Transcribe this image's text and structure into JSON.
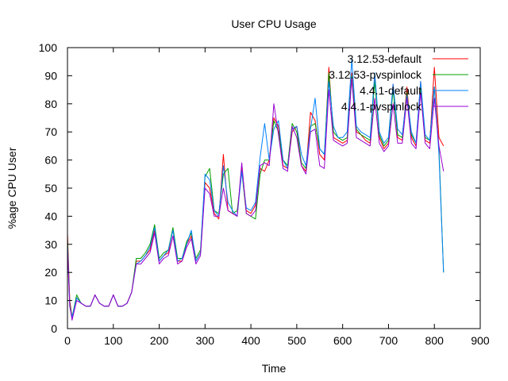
{
  "chart_data": {
    "type": "line",
    "title": "User CPU Usage",
    "xlabel": "Time",
    "ylabel": "%age CPU User",
    "xlim": [
      0,
      900
    ],
    "ylim": [
      0,
      100
    ],
    "xticks": [
      0,
      100,
      200,
      300,
      400,
      500,
      600,
      700,
      800,
      900
    ],
    "yticks": [
      0,
      10,
      20,
      30,
      40,
      50,
      60,
      70,
      80,
      90,
      100
    ],
    "grid": false,
    "legend_position": "top-right",
    "series": [
      {
        "name": "3.12.53-default",
        "color": "#ff0000",
        "x": [
          0,
          5,
          10,
          20,
          30,
          40,
          50,
          60,
          70,
          80,
          90,
          100,
          110,
          120,
          130,
          140,
          150,
          160,
          170,
          180,
          190,
          200,
          210,
          220,
          230,
          240,
          250,
          260,
          270,
          280,
          290,
          300,
          310,
          320,
          330,
          340,
          350,
          360,
          370,
          380,
          390,
          400,
          410,
          420,
          430,
          440,
          450,
          460,
          470,
          480,
          490,
          500,
          510,
          520,
          530,
          540,
          550,
          560,
          570,
          580,
          590,
          600,
          610,
          620,
          630,
          640,
          650,
          660,
          670,
          680,
          690,
          700,
          710,
          720,
          730,
          740,
          750,
          760,
          770,
          780,
          790,
          800,
          810,
          820
        ],
        "y": [
          34,
          10,
          4,
          11,
          9,
          8,
          8,
          12,
          9,
          8,
          8,
          12,
          8,
          8,
          9,
          13,
          24,
          24,
          26,
          28,
          35,
          24,
          26,
          27,
          33,
          24,
          24,
          30,
          33,
          24,
          27,
          52,
          50,
          41,
          39,
          62,
          42,
          41,
          40,
          58,
          42,
          41,
          44,
          57,
          56,
          60,
          75,
          72,
          58,
          57,
          70,
          72,
          58,
          56,
          77,
          74,
          62,
          60,
          93,
          68,
          67,
          66,
          67,
          91,
          70,
          69,
          67,
          66,
          90,
          68,
          64,
          66,
          87,
          68,
          67,
          86,
          68,
          65,
          88,
          67,
          66,
          93,
          68,
          65
        ]
      },
      {
        "name": "3.12.53-pvspinlock",
        "color": "#00a000",
        "x": [
          0,
          5,
          10,
          20,
          30,
          40,
          50,
          60,
          70,
          80,
          90,
          100,
          110,
          120,
          130,
          140,
          150,
          160,
          170,
          180,
          190,
          200,
          210,
          220,
          230,
          240,
          250,
          260,
          270,
          280,
          290,
          300,
          310,
          320,
          330,
          340,
          350,
          360,
          370,
          380,
          390,
          400,
          410,
          420,
          430,
          440,
          450,
          460,
          470,
          480,
          490,
          500,
          510,
          520,
          530,
          540,
          550,
          560,
          570,
          580,
          590,
          600,
          610,
          620,
          630,
          640,
          650,
          660,
          670,
          680,
          690,
          700,
          710,
          720,
          730,
          740,
          750,
          760,
          770,
          780,
          790,
          800,
          810,
          820
        ],
        "y": [
          32,
          9,
          4,
          12,
          9,
          8,
          8,
          12,
          9,
          8,
          8,
          12,
          8,
          8,
          9,
          13,
          25,
          25,
          27,
          30,
          37,
          25,
          27,
          28,
          36,
          25,
          25,
          31,
          34,
          25,
          28,
          54,
          57,
          42,
          41,
          55,
          57,
          41,
          42,
          56,
          41,
          40,
          39,
          55,
          60,
          60,
          74,
          70,
          60,
          58,
          73,
          70,
          59,
          57,
          72,
          73,
          64,
          62,
          91,
          70,
          68,
          67,
          68,
          90,
          71,
          69,
          68,
          67,
          88,
          69,
          65,
          67,
          85,
          69,
          68,
          84,
          69,
          66,
          86,
          68,
          67,
          86,
          64,
          20
        ]
      },
      {
        "name": "4.4.1-default",
        "color": "#0080ff",
        "x": [
          0,
          5,
          10,
          20,
          30,
          40,
          50,
          60,
          70,
          80,
          90,
          100,
          110,
          120,
          130,
          140,
          150,
          160,
          170,
          180,
          190,
          200,
          210,
          220,
          230,
          240,
          250,
          260,
          270,
          280,
          290,
          300,
          310,
          320,
          330,
          340,
          350,
          360,
          370,
          380,
          390,
          400,
          410,
          420,
          430,
          440,
          450,
          460,
          470,
          480,
          490,
          500,
          510,
          520,
          530,
          540,
          550,
          560,
          570,
          580,
          590,
          600,
          610,
          620,
          630,
          640,
          650,
          660,
          670,
          680,
          690,
          700,
          710,
          720,
          730,
          740,
          750,
          760,
          770,
          780,
          790,
          800,
          810,
          820
        ],
        "y": [
          30,
          8,
          4,
          11,
          9,
          8,
          8,
          12,
          9,
          8,
          8,
          12,
          8,
          8,
          9,
          13,
          23,
          24,
          26,
          29,
          36,
          24,
          26,
          28,
          35,
          24,
          25,
          30,
          35,
          24,
          27,
          55,
          53,
          42,
          40,
          58,
          45,
          42,
          40,
          56,
          43,
          42,
          45,
          61,
          73,
          60,
          71,
          74,
          60,
          57,
          71,
          72,
          62,
          58,
          71,
          82,
          64,
          62,
          88,
          72,
          68,
          68,
          70,
          96,
          72,
          70,
          69,
          68,
          91,
          70,
          66,
          68,
          87,
          71,
          69,
          83,
          70,
          66,
          88,
          69,
          67,
          86,
          62,
          20
        ]
      },
      {
        "name": "4.4.1-pvspinlock",
        "color": "#9a00d0",
        "x": [
          0,
          5,
          10,
          20,
          30,
          40,
          50,
          60,
          70,
          80,
          90,
          100,
          110,
          120,
          130,
          140,
          150,
          160,
          170,
          180,
          190,
          200,
          210,
          220,
          230,
          240,
          250,
          260,
          270,
          280,
          290,
          300,
          310,
          320,
          330,
          340,
          350,
          360,
          370,
          380,
          390,
          400,
          410,
          420,
          430,
          440,
          450,
          460,
          470,
          480,
          490,
          500,
          510,
          520,
          530,
          540,
          550,
          560,
          570,
          580,
          590,
          600,
          610,
          620,
          630,
          640,
          650,
          660,
          670,
          680,
          690,
          700,
          710,
          720,
          730,
          740,
          750,
          760,
          770,
          780,
          790,
          800,
          810,
          820
        ],
        "y": [
          29,
          8,
          3,
          10,
          9,
          8,
          8,
          12,
          9,
          8,
          8,
          12,
          8,
          8,
          9,
          13,
          23,
          23,
          25,
          27,
          34,
          23,
          25,
          26,
          33,
          23,
          24,
          29,
          32,
          23,
          26,
          50,
          48,
          40,
          40,
          50,
          42,
          41,
          40,
          59,
          41,
          40,
          42,
          58,
          59,
          58,
          80,
          69,
          57,
          56,
          72,
          68,
          58,
          55,
          70,
          71,
          58,
          57,
          85,
          67,
          66,
          65,
          66,
          89,
          68,
          67,
          66,
          65,
          82,
          66,
          63,
          65,
          80,
          66,
          66,
          82,
          66,
          64,
          84,
          66,
          64,
          82,
          65,
          56
        ]
      }
    ]
  }
}
